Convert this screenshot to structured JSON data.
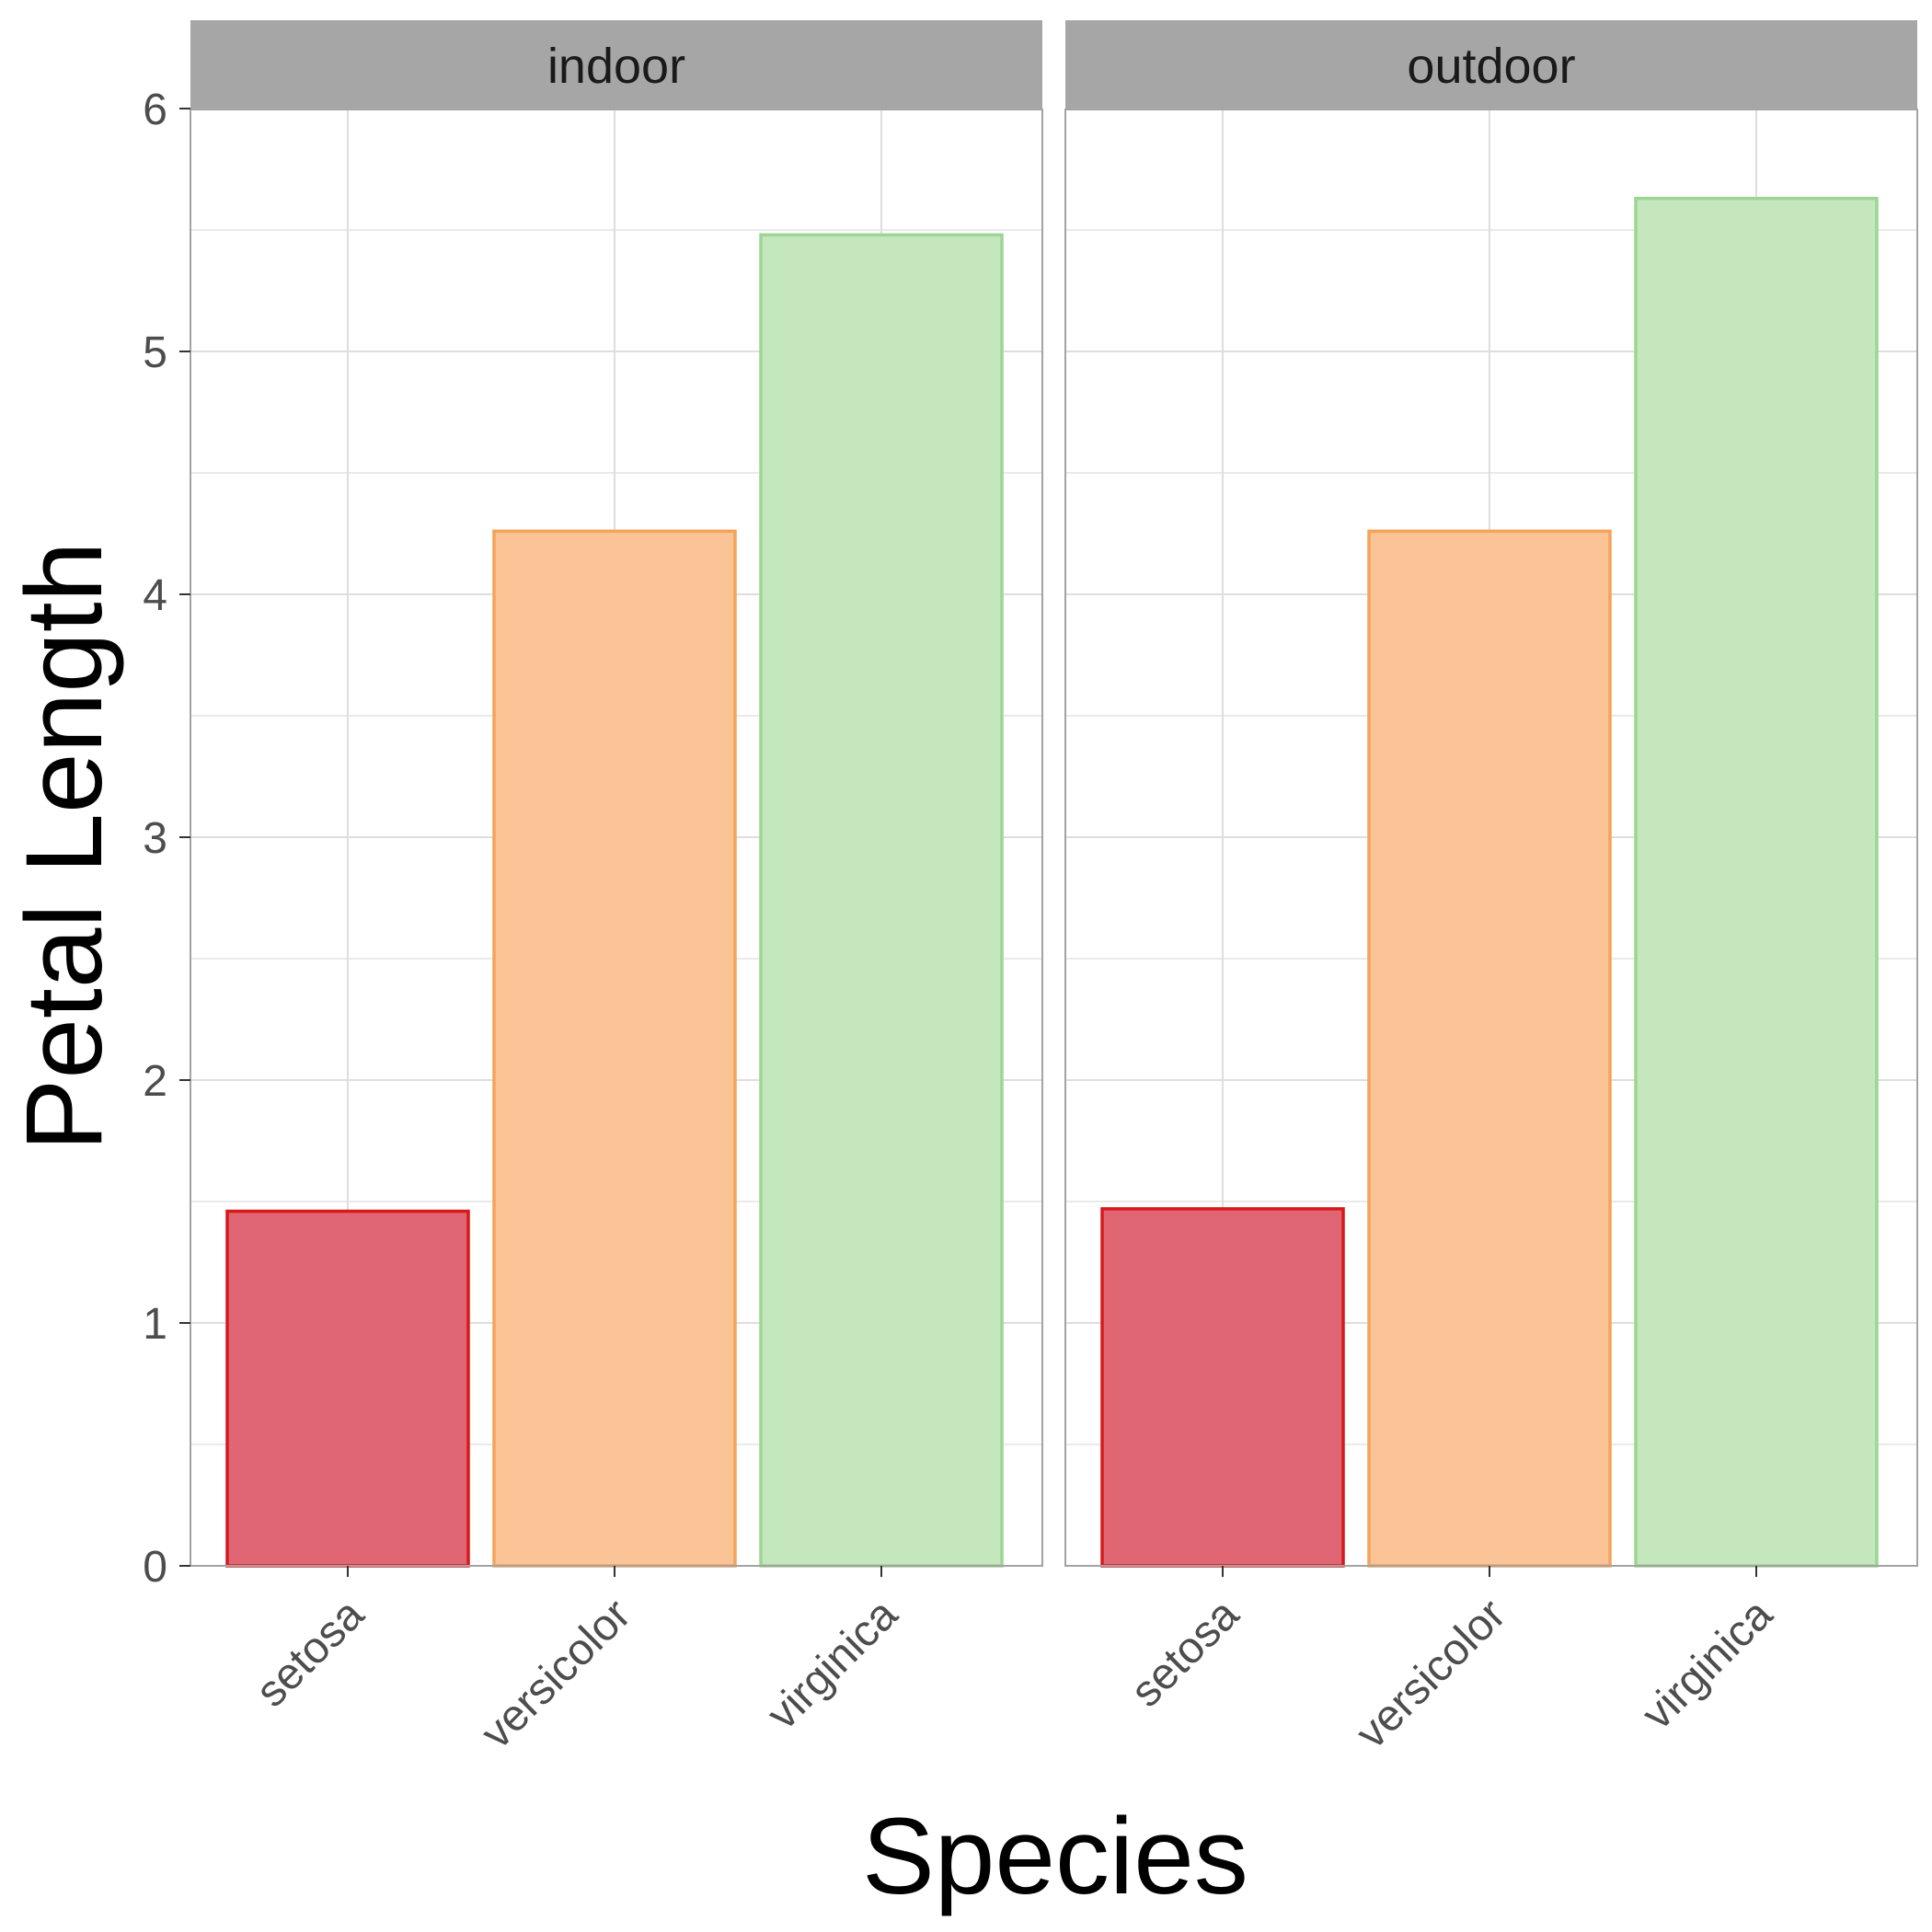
{
  "chart_data": {
    "type": "bar",
    "xlabel": "Species",
    "ylabel": "Petal Length",
    "ylim": [
      0,
      6
    ],
    "y_ticks": [
      "0",
      "1",
      "2",
      "3",
      "4",
      "5",
      "6"
    ],
    "grid": true,
    "categories": [
      "setosa",
      "versicolor",
      "virginica"
    ],
    "facets": [
      {
        "label": "indoor",
        "values": [
          1.46,
          4.26,
          5.48
        ]
      },
      {
        "label": "outdoor",
        "values": [
          1.47,
          4.26,
          5.63
        ]
      }
    ],
    "colors": {
      "setosa": {
        "fill": "#e06673",
        "stroke": "#d7191c"
      },
      "versicolor": {
        "fill": "#fbc497",
        "stroke": "#f4a35a"
      },
      "virginica": {
        "fill": "#c4e7bd",
        "stroke": "#9dd694"
      },
      "strip": "#a6a6a6",
      "grid": "#dedede",
      "panel_border": "#a3a3a3"
    }
  }
}
